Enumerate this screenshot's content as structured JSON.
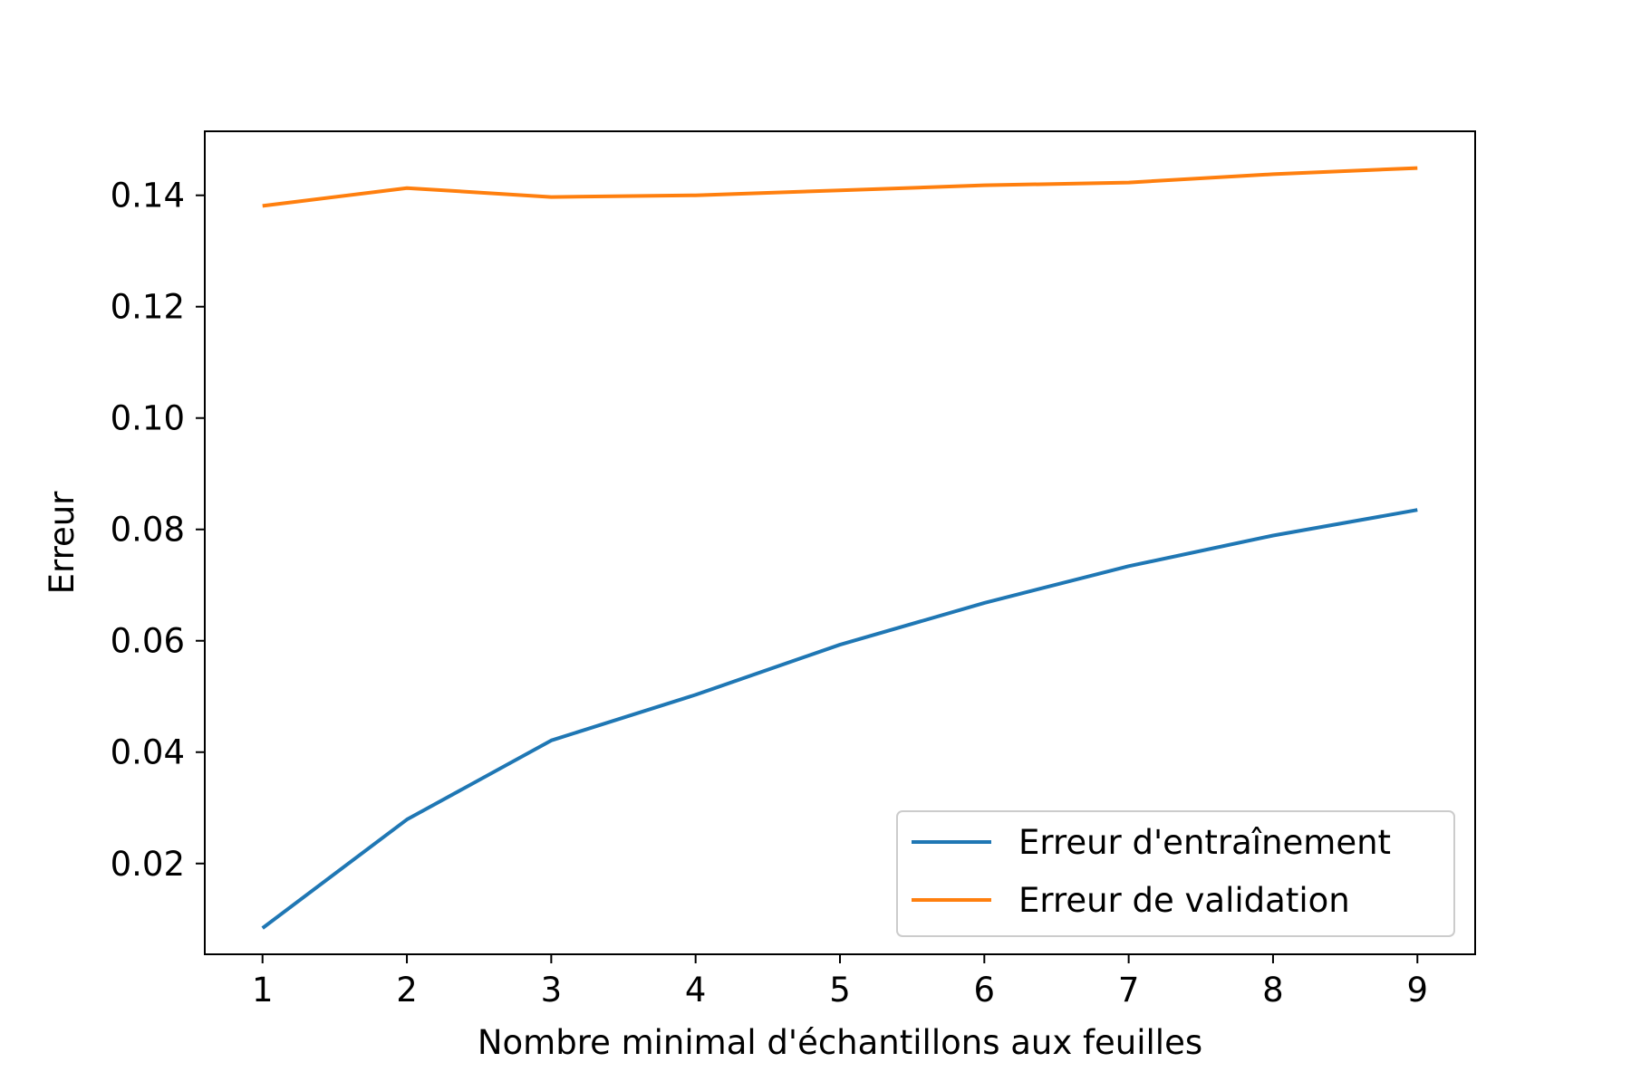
{
  "chart_data": {
    "type": "line",
    "title": "",
    "xlabel": "Nombre minimal d'échantillons aux feuilles",
    "ylabel": "Erreur",
    "x": [
      1,
      2,
      3,
      4,
      5,
      6,
      7,
      8,
      9
    ],
    "xlim": [
      0.6,
      9.4
    ],
    "ylim": [
      0.0037,
      0.1515
    ],
    "xticks": [
      "1",
      "2",
      "3",
      "4",
      "5",
      "6",
      "7",
      "8",
      "9"
    ],
    "yticks": [
      "0.02",
      "0.04",
      "0.06",
      "0.08",
      "0.10",
      "0.12",
      "0.14"
    ],
    "ytick_values": [
      0.02,
      0.04,
      0.06,
      0.08,
      0.1,
      0.12,
      0.14
    ],
    "grid": false,
    "legend_position": "lower-right",
    "series": [
      {
        "name": "Erreur d'entraînement",
        "color": "#1f77b4",
        "values": [
          0.0084,
          0.0279,
          0.0421,
          0.0503,
          0.0593,
          0.0668,
          0.0734,
          0.0789,
          0.0835
        ]
      },
      {
        "name": "Erreur de validation",
        "color": "#ff7f0e",
        "values": [
          0.1381,
          0.1413,
          0.1397,
          0.14,
          0.1409,
          0.1418,
          0.1423,
          0.1438,
          0.1449
        ]
      }
    ]
  }
}
